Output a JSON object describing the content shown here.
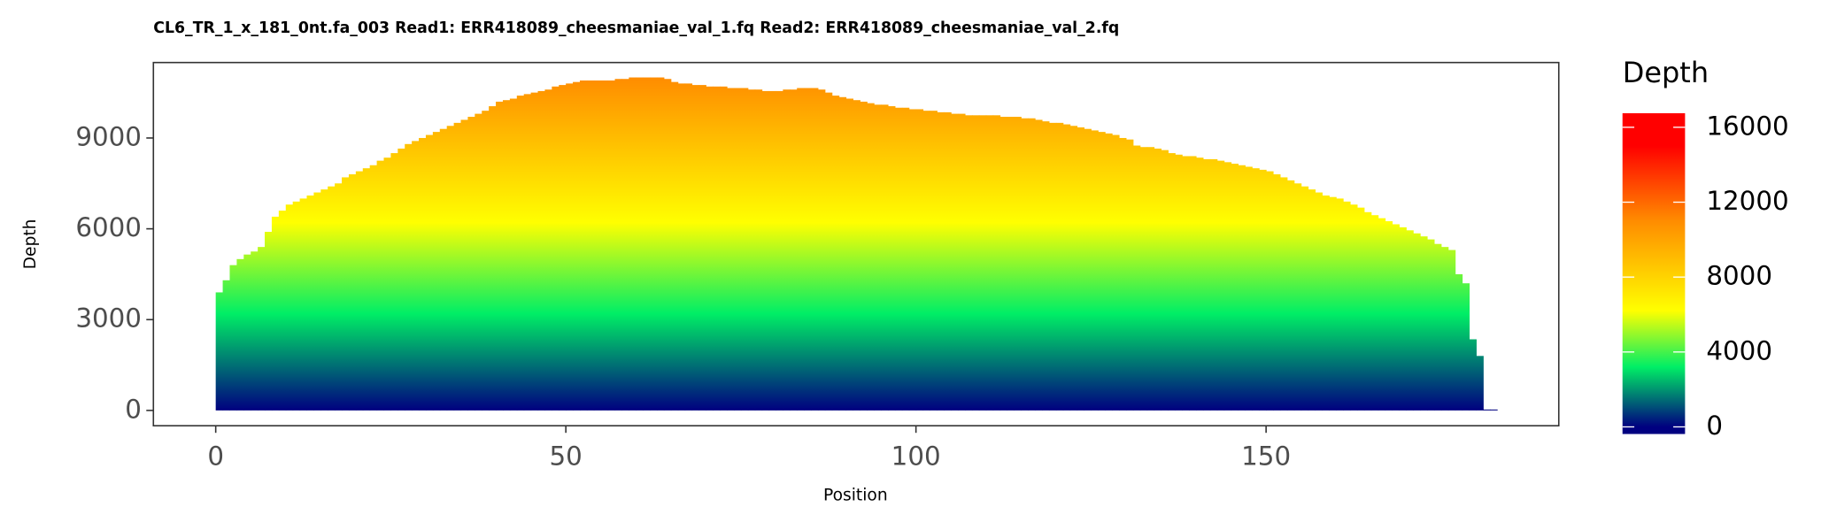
{
  "chart_data": {
    "type": "bar",
    "title": "CL6_TR_1_x_181_0nt.fa_003   Read1: ERR418089_cheesmaniae_val_1.fq   Read2: ERR418089_cheesmaniae_val_2.fq",
    "x_label": "Position",
    "y_label": "Depth",
    "legend_title": "Depth",
    "x": [
      0,
      1,
      2,
      3,
      4,
      5,
      6,
      7,
      8,
      9,
      10,
      11,
      12,
      13,
      14,
      15,
      16,
      17,
      18,
      19,
      20,
      21,
      22,
      23,
      24,
      25,
      26,
      27,
      28,
      29,
      30,
      31,
      32,
      33,
      34,
      35,
      36,
      37,
      38,
      39,
      40,
      41,
      42,
      43,
      44,
      45,
      46,
      47,
      48,
      49,
      50,
      51,
      52,
      53,
      54,
      55,
      56,
      57,
      58,
      59,
      60,
      61,
      62,
      63,
      64,
      65,
      66,
      67,
      68,
      69,
      70,
      71,
      72,
      73,
      74,
      75,
      76,
      77,
      78,
      79,
      80,
      81,
      82,
      83,
      84,
      85,
      86,
      87,
      88,
      89,
      90,
      91,
      92,
      93,
      94,
      95,
      96,
      97,
      98,
      99,
      100,
      101,
      102,
      103,
      104,
      105,
      106,
      107,
      108,
      109,
      110,
      111,
      112,
      113,
      114,
      115,
      116,
      117,
      118,
      119,
      120,
      121,
      122,
      123,
      124,
      125,
      126,
      127,
      128,
      129,
      130,
      131,
      132,
      133,
      134,
      135,
      136,
      137,
      138,
      139,
      140,
      141,
      142,
      143,
      144,
      145,
      146,
      147,
      148,
      149,
      150,
      151,
      152,
      153,
      154,
      155,
      156,
      157,
      158,
      159,
      160,
      161,
      162,
      163,
      164,
      165,
      166,
      167,
      168,
      169,
      170,
      171,
      172,
      173,
      174,
      175,
      176,
      177,
      178,
      179,
      180,
      181,
      182
    ],
    "values": [
      3900,
      4300,
      4800,
      5000,
      5150,
      5250,
      5400,
      5900,
      6400,
      6600,
      6800,
      6900,
      7000,
      7100,
      7200,
      7300,
      7400,
      7500,
      7700,
      7800,
      7900,
      8000,
      8100,
      8250,
      8350,
      8500,
      8650,
      8800,
      8900,
      9000,
      9100,
      9200,
      9300,
      9400,
      9500,
      9600,
      9700,
      9800,
      9900,
      10050,
      10200,
      10250,
      10300,
      10400,
      10450,
      10500,
      10550,
      10600,
      10700,
      10750,
      10800,
      10850,
      10900,
      10900,
      10900,
      10900,
      10900,
      10950,
      10950,
      11000,
      11000,
      11000,
      11000,
      11000,
      10950,
      10850,
      10800,
      10800,
      10750,
      10750,
      10700,
      10700,
      10700,
      10650,
      10650,
      10650,
      10600,
      10600,
      10550,
      10550,
      10550,
      10600,
      10600,
      10650,
      10650,
      10650,
      10600,
      10500,
      10400,
      10350,
      10300,
      10250,
      10200,
      10150,
      10100,
      10100,
      10050,
      10000,
      10000,
      9950,
      9950,
      9900,
      9900,
      9850,
      9850,
      9800,
      9800,
      9750,
      9750,
      9750,
      9750,
      9750,
      9700,
      9700,
      9700,
      9650,
      9650,
      9600,
      9550,
      9500,
      9500,
      9450,
      9400,
      9350,
      9300,
      9250,
      9200,
      9150,
      9100,
      9000,
      8950,
      8750,
      8700,
      8700,
      8650,
      8600,
      8500,
      8450,
      8400,
      8400,
      8350,
      8300,
      8300,
      8250,
      8200,
      8150,
      8100,
      8050,
      8000,
      7950,
      7900,
      7800,
      7700,
      7600,
      7500,
      7400,
      7300,
      7200,
      7100,
      7050,
      7000,
      6900,
      6800,
      6700,
      6550,
      6450,
      6350,
      6250,
      6150,
      6050,
      5950,
      5850,
      5750,
      5650,
      5500,
      5400,
      5300,
      4500,
      4200,
      2350,
      1800,
      30,
      30
    ],
    "xlim": [
      -8.9,
      191.8
    ],
    "ylim": [
      -506,
      11493
    ],
    "xticks": [
      0,
      50,
      100,
      150
    ],
    "yticks": [
      0,
      3000,
      6000,
      9000
    ],
    "colorbar_lim": [
      -380,
      16750
    ],
    "colorbar_ticks": [
      0,
      4000,
      8000,
      12000,
      16000
    ],
    "color_scale": [
      {
        "value": 0,
        "color": "#000080"
      },
      {
        "value": 3200,
        "color": "#00ee66"
      },
      {
        "value": 6200,
        "color": "#ffff00"
      },
      {
        "value": 11000,
        "color": "#ff8c00"
      },
      {
        "value": 15000,
        "color": "#ff0000"
      }
    ]
  }
}
